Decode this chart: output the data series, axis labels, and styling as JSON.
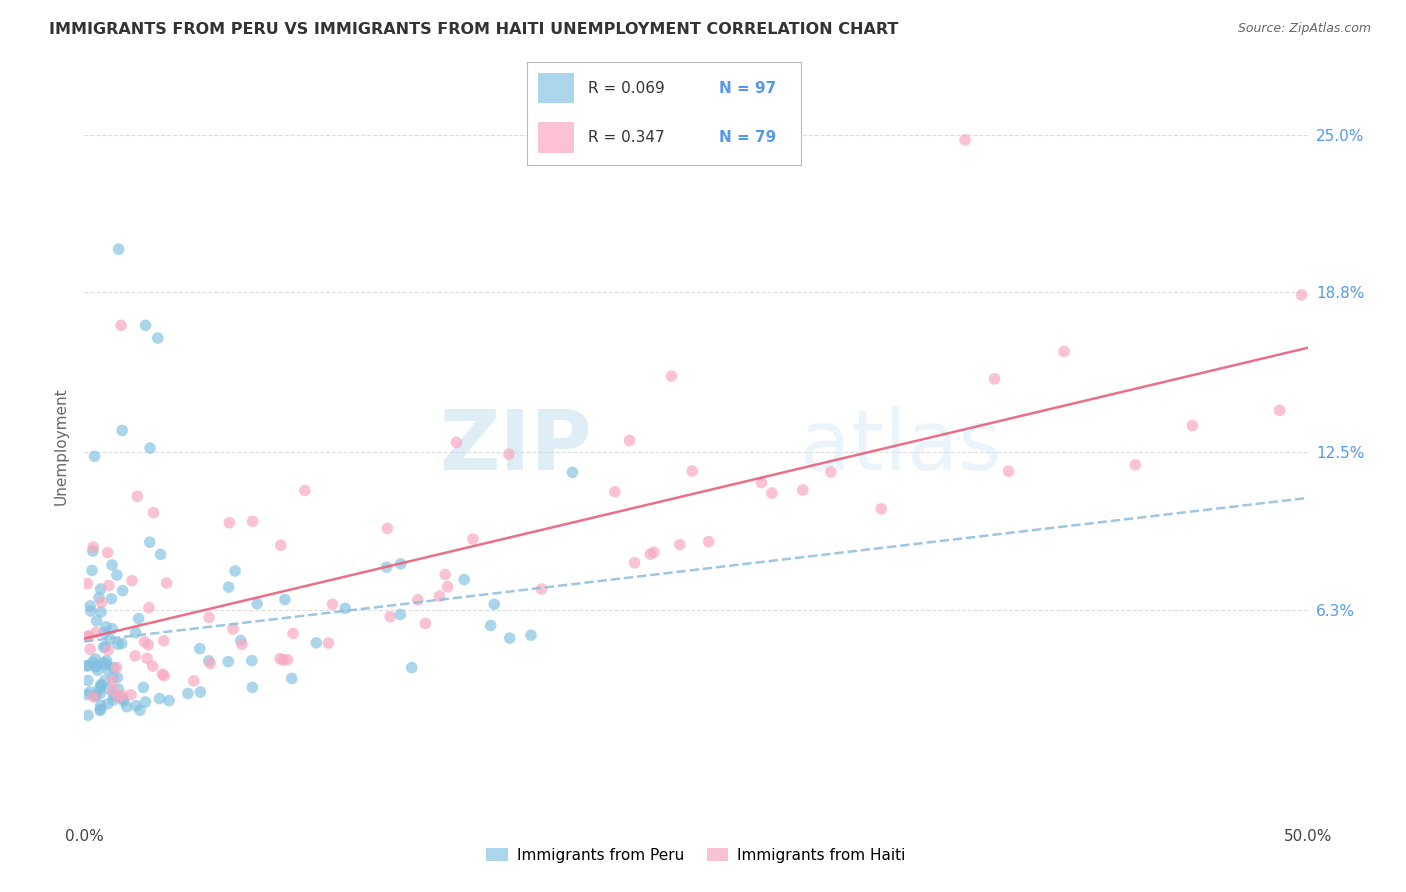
{
  "title": "IMMIGRANTS FROM PERU VS IMMIGRANTS FROM HAITI UNEMPLOYMENT CORRELATION CHART",
  "source": "Source: ZipAtlas.com",
  "ylabel": "Unemployment",
  "xlim": [
    0.0,
    0.5
  ],
  "ylim": [
    -0.02,
    0.275
  ],
  "xtick_positions": [
    0.0,
    0.1,
    0.2,
    0.3,
    0.4,
    0.5
  ],
  "xtick_labels": [
    "0.0%",
    "",
    "",
    "",
    "",
    "50.0%"
  ],
  "ytick_values": [
    0.063,
    0.125,
    0.188,
    0.25
  ],
  "ytick_labels": [
    "6.3%",
    "12.5%",
    "18.8%",
    "25.0%"
  ],
  "watermark_zip": "ZIP",
  "watermark_atlas": "atlas",
  "legend_peru_r": "R = 0.069",
  "legend_peru_n": "N = 97",
  "legend_haiti_r": "R = 0.347",
  "legend_haiti_n": "N = 79",
  "color_peru": "#7fbfdf",
  "color_haiti": "#f9a8c0",
  "color_peru_line": "#8bbcdc",
  "color_haiti_line": "#e8607a",
  "color_title": "#333333",
  "color_source": "#666666",
  "color_right_labels": "#5599ee",
  "color_n_labels": "#5599ee",
  "color_r_text": "#333333",
  "background_color": "#ffffff",
  "grid_color": "#dddddd",
  "legend_box_color": "#cccccc",
  "bottom_legend_label_peru": "Immigrants from Peru",
  "bottom_legend_label_haiti": "Immigrants from Haiti"
}
